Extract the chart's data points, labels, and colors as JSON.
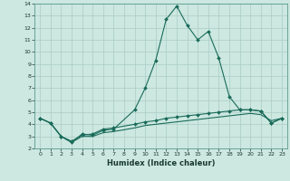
{
  "xlabel": "Humidex (Indice chaleur)",
  "background_color": "#cce8e0",
  "grid_color": "#aaccc4",
  "line_color": "#1a6b5a",
  "xlim": [
    -0.5,
    23.5
  ],
  "ylim": [
    2,
    14
  ],
  "xticks": [
    0,
    1,
    2,
    3,
    4,
    5,
    6,
    7,
    8,
    9,
    10,
    11,
    12,
    13,
    14,
    15,
    16,
    17,
    18,
    19,
    20,
    21,
    22,
    23
  ],
  "yticks": [
    2,
    3,
    4,
    5,
    6,
    7,
    8,
    9,
    10,
    11,
    12,
    13,
    14
  ],
  "series1_x": [
    0,
    1,
    2,
    3,
    4,
    5,
    6,
    7,
    9,
    10,
    11,
    12,
    13,
    14,
    15,
    16,
    17,
    18,
    19,
    20,
    21,
    22,
    23
  ],
  "series1_y": [
    4.5,
    4.1,
    3.0,
    2.5,
    3.2,
    3.1,
    3.5,
    3.6,
    5.2,
    7.0,
    9.3,
    12.7,
    13.8,
    12.2,
    11.0,
    11.7,
    9.5,
    6.3,
    5.2,
    5.2,
    5.1,
    4.1,
    4.5
  ],
  "series2_x": [
    0,
    1,
    2,
    3,
    4,
    5,
    6,
    7,
    9,
    10,
    11,
    12,
    13,
    14,
    15,
    16,
    17,
    18,
    19,
    20,
    21,
    22,
    23
  ],
  "series2_y": [
    4.5,
    4.1,
    3.0,
    2.6,
    3.1,
    3.2,
    3.6,
    3.7,
    4.0,
    4.2,
    4.3,
    4.5,
    4.6,
    4.7,
    4.8,
    4.9,
    5.0,
    5.1,
    5.2,
    5.2,
    5.1,
    4.1,
    4.5
  ],
  "series3_x": [
    0,
    1,
    2,
    3,
    4,
    5,
    6,
    7,
    9,
    10,
    11,
    12,
    13,
    14,
    15,
    16,
    17,
    18,
    19,
    20,
    21,
    22,
    23
  ],
  "series3_y": [
    4.5,
    4.1,
    3.0,
    2.5,
    3.0,
    3.0,
    3.3,
    3.4,
    3.7,
    3.9,
    4.0,
    4.1,
    4.2,
    4.3,
    4.4,
    4.5,
    4.6,
    4.7,
    4.8,
    4.9,
    4.8,
    4.3,
    4.5
  ]
}
